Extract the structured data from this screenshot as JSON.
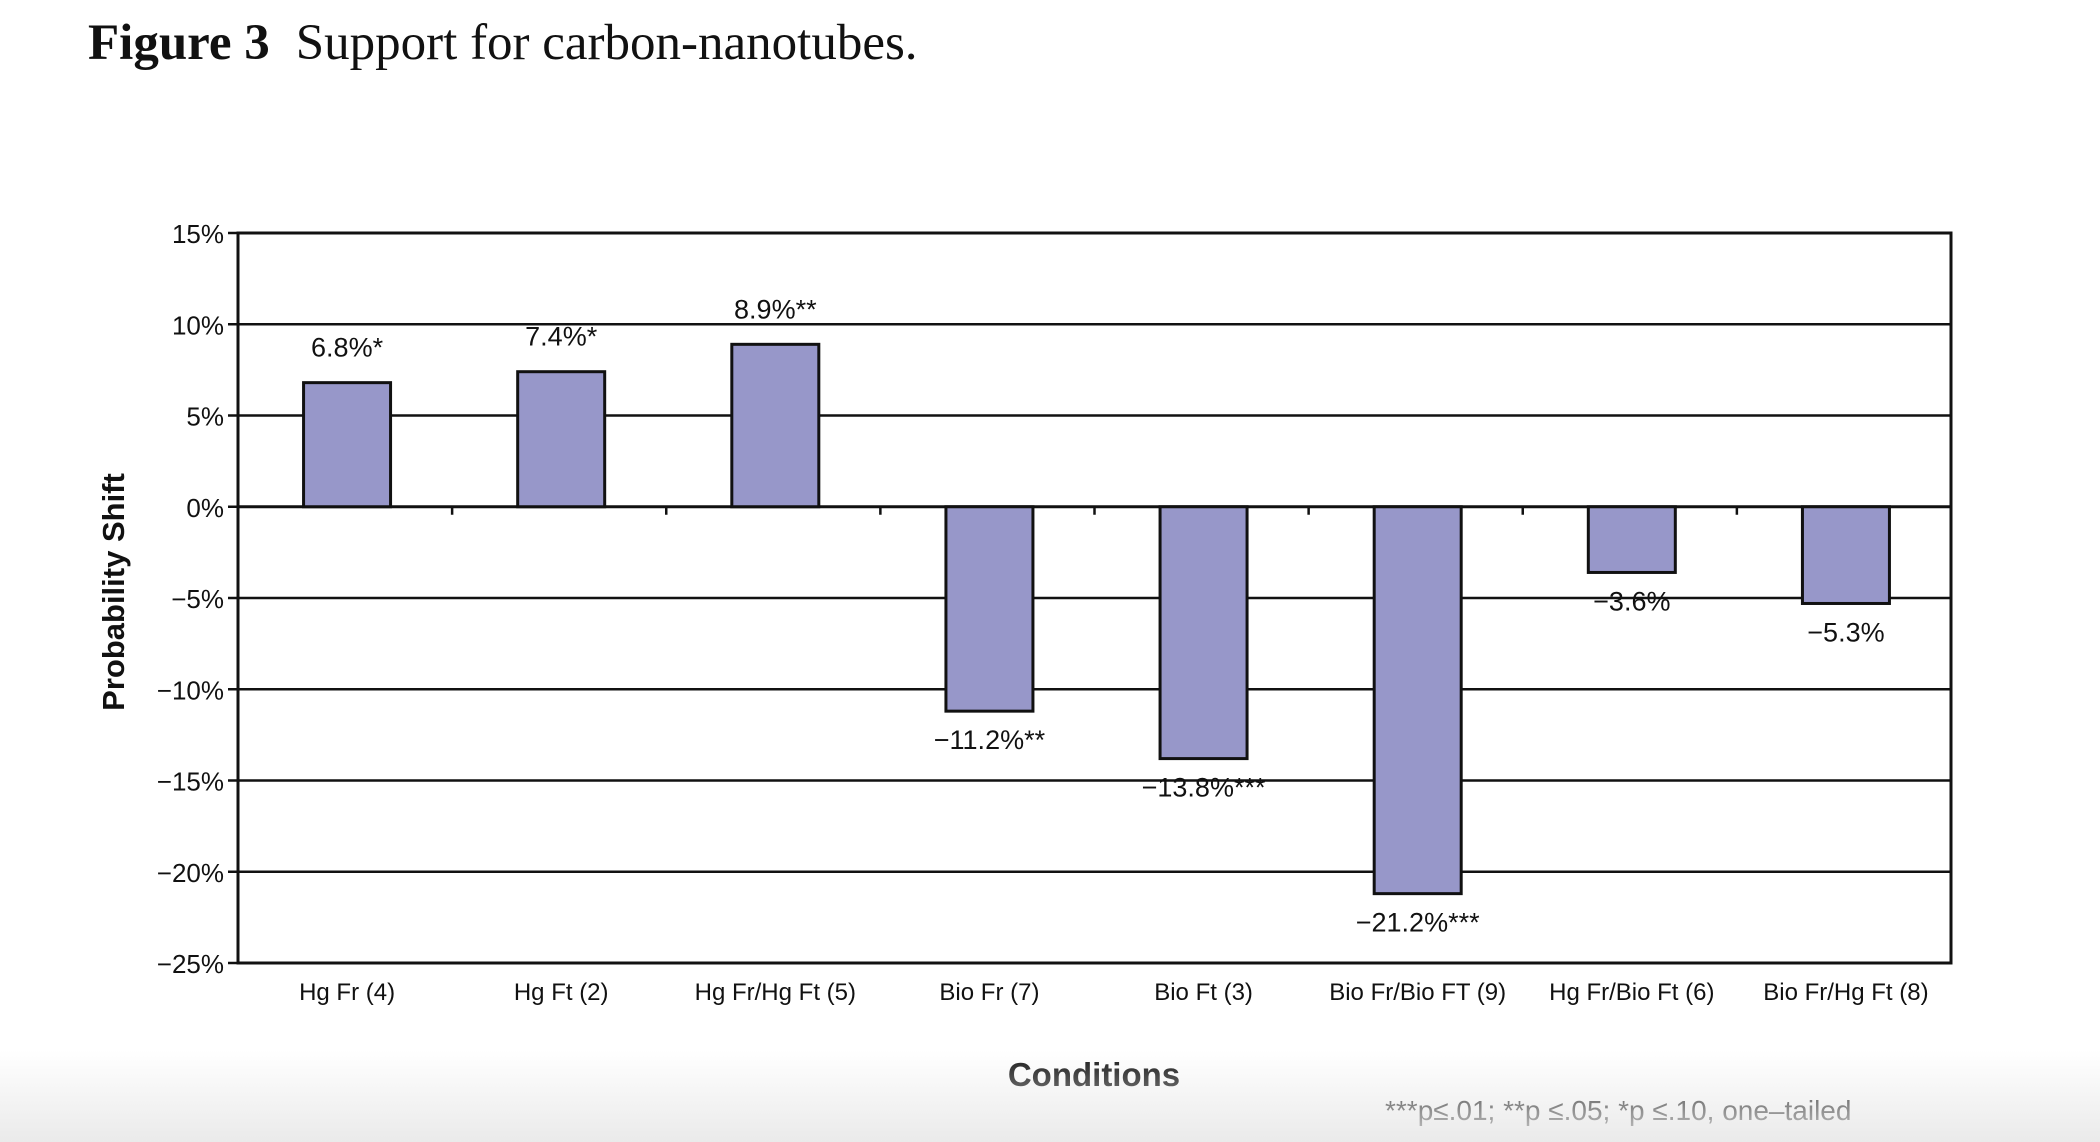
{
  "figure": {
    "number": "Figure 3",
    "caption": "Support for carbon-nanotubes."
  },
  "footnote": "***p≤.01; **p ≤.05; *p ≤.10, one–tailed",
  "colors": {
    "bar_fill": "#9797c9",
    "bar_stroke": "#111111",
    "grid": "#111111"
  },
  "chart_data": {
    "type": "bar",
    "title": "",
    "xlabel": "Conditions",
    "ylabel": "Probability Shift",
    "ylim": [
      -25,
      15
    ],
    "yticks": [
      15,
      10,
      5,
      0,
      -5,
      -10,
      -15,
      -20,
      -25
    ],
    "ytick_labels": [
      "15%",
      "10%",
      "5%",
      "0%",
      "−5%",
      "−10%",
      "−15%",
      "−20%",
      "−25%"
    ],
    "grid": true,
    "categories": [
      "Hg Fr (4)",
      "Hg Ft (2)",
      "Hg Fr/Hg Ft (5)",
      "Bio Fr (7)",
      "Bio Ft (3)",
      "Bio Fr/Bio FT (9)",
      "Hg Fr/Bio Ft (6)",
      "Bio Fr/Hg Ft (8)"
    ],
    "values": [
      6.8,
      7.4,
      8.9,
      -11.2,
      -13.8,
      -21.2,
      -3.6,
      -5.3
    ],
    "data_labels": [
      "6.8%*",
      "7.4%*",
      "8.9%**",
      "−11.2%**",
      "−13.8%***",
      "−21.2%***",
      "−3.6%",
      "−5.3%"
    ]
  }
}
